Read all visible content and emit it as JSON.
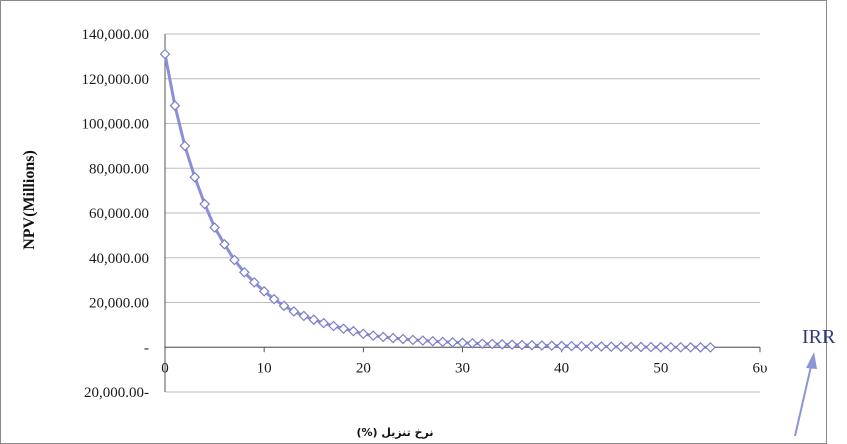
{
  "chart_data": {
    "type": "line",
    "ylabel": "NPV(Millions)",
    "xlabel": "نرخ تنزیل (%)",
    "xlim": [
      0,
      60
    ],
    "ylim": [
      -20000,
      140000
    ],
    "x_ticks": [
      {
        "value": 0,
        "label": "0"
      },
      {
        "value": 10,
        "label": "10"
      },
      {
        "value": 20,
        "label": "20"
      },
      {
        "value": 30,
        "label": "30"
      },
      {
        "value": 40,
        "label": "40"
      },
      {
        "value": 50,
        "label": "50"
      },
      {
        "value": 60,
        "label": "6υ"
      }
    ],
    "y_ticks": [
      {
        "value": 140000,
        "label": "140,000.00"
      },
      {
        "value": 120000,
        "label": "120,000.00"
      },
      {
        "value": 100000,
        "label": "100,000.00"
      },
      {
        "value": 80000,
        "label": "80,000.00"
      },
      {
        "value": 60000,
        "label": "60,000.00"
      },
      {
        "value": 40000,
        "label": "40,000.00"
      },
      {
        "value": 20000,
        "label": "20,000.00"
      },
      {
        "value": 0,
        "label": "-"
      },
      {
        "value": -20000,
        "label": "20,000.00-"
      }
    ],
    "grid": true,
    "series": [
      {
        "color": "#8b8fd9",
        "marker": "diamond",
        "x": [
          0,
          1,
          2,
          3,
          4,
          5,
          6,
          7,
          8,
          9,
          10,
          11,
          12,
          13,
          14,
          15,
          16,
          17,
          18,
          19,
          20,
          21,
          22,
          23,
          24,
          25,
          26,
          27,
          28,
          29,
          30,
          31,
          32,
          33,
          34,
          35,
          36,
          37,
          38,
          39,
          40,
          41,
          42,
          43,
          44,
          45,
          46,
          47,
          48,
          49,
          50,
          51,
          52,
          53,
          54,
          55
        ],
        "values": [
          131000,
          108000,
          90000,
          76000,
          64000,
          53500,
          46000,
          39000,
          33500,
          29000,
          25000,
          21500,
          18500,
          16000,
          14000,
          12300,
          10800,
          9500,
          8300,
          7200,
          6000,
          5200,
          4600,
          4100,
          3700,
          3300,
          3000,
          2700,
          2400,
          2200,
          2000,
          1800,
          1600,
          1450,
          1300,
          1150,
          1000,
          900,
          800,
          700,
          600,
          520,
          450,
          380,
          320,
          260,
          200,
          160,
          120,
          80,
          40,
          20,
          0,
          -20,
          -40,
          -60
        ]
      }
    ]
  },
  "annotation": {
    "label": "IRR",
    "arrow_color": "#8c95d6"
  }
}
